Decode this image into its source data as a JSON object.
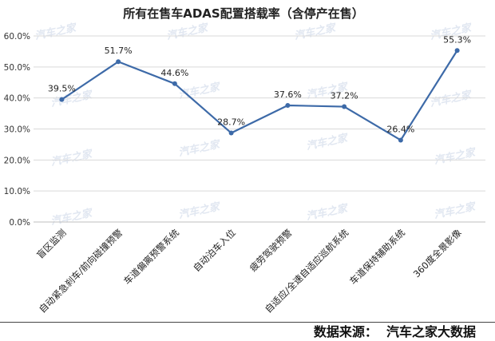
{
  "chart_data": {
    "type": "line",
    "title": "所有在售车ADAS配置搭载率（含停产在售）",
    "categories": [
      "盲区监测",
      "自动紧急刹车/前向碰撞预警",
      "车道偏离预警系统",
      "自动泊车入位",
      "疲劳驾驶预警",
      "自适应/全速自适应巡航系统",
      "车道保持辅助系统",
      "360度全景影像"
    ],
    "series": [
      {
        "values": [
          39.5,
          51.7,
          44.6,
          28.7,
          37.6,
          37.2,
          26.4,
          55.3
        ],
        "labels": [
          "39.5%",
          "51.7%",
          "44.6%",
          "28.7%",
          "37.6%",
          "37.2%",
          "26.4%",
          "55.3%"
        ],
        "color": "#3d6aa8"
      }
    ],
    "ylim": [
      0,
      60
    ],
    "yticks": [
      0,
      10,
      20,
      30,
      40,
      50,
      60
    ],
    "ytick_labels": [
      "0.0%",
      "10.0%",
      "20.0%",
      "30.0%",
      "40.0%",
      "50.0%",
      "60.0%"
    ],
    "grid": true,
    "grid_color": "#d9d9d9",
    "legend": "none"
  },
  "watermark": {
    "text": "汽车之家"
  },
  "source_note": "数据来源：  汽车之家大数据"
}
